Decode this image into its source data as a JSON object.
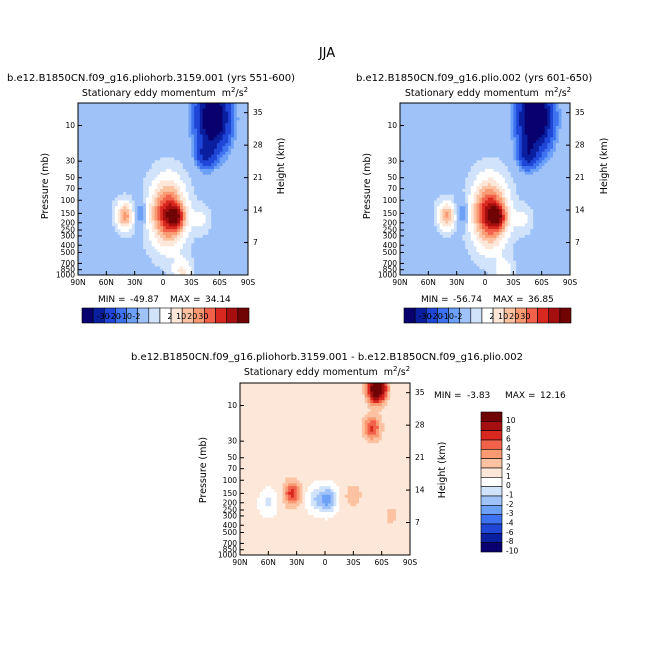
{
  "figure": {
    "season_title": "JJA"
  },
  "colors": {
    "palette_main": [
      "#08006e",
      "#0a1ea0",
      "#1f46d6",
      "#3f72f0",
      "#6da0f7",
      "#9fc2f9",
      "#d1e3fb",
      "#ffffff",
      "#fde7d8",
      "#fcc2a1",
      "#fa9a73",
      "#f2624a",
      "#d9281f",
      "#a60f0f",
      "#700404"
    ],
    "palette_diff": [
      "#08006e",
      "#0a1ea0",
      "#1f46d6",
      "#3f72f0",
      "#6da0f7",
      "#9fc2f9",
      "#d1e3fb",
      "#ffffff",
      "#fde7d8",
      "#fcc2a1",
      "#fa9a73",
      "#f2624a",
      "#d9281f",
      "#a60f0f",
      "#700404"
    ]
  },
  "chart_data": [
    {
      "id": "panel-a",
      "type": "heatmap",
      "case_title": "b.e12.B1850CN.f09_g16.pliohorb.3159.001 (yrs 551-600)",
      "variable_title": "Stationary eddy momentum",
      "units_base": "m",
      "units_sup1": "2",
      "units_sep": "/s",
      "units_sup2": "2",
      "xlabel": "",
      "ylabel": "Pressure  (mb)",
      "ylabel_right": "Height  (km)",
      "x_ticks": [
        "90N",
        "60N",
        "30N",
        "0",
        "30S",
        "60S",
        "90S"
      ],
      "x_tick_values": [
        90,
        60,
        30,
        0,
        -30,
        -60,
        -90
      ],
      "xlim": [
        90,
        -90
      ],
      "y_ticks": [
        "10",
        "30",
        "50",
        "70",
        "100",
        "150",
        "200",
        "250",
        "300",
        "400",
        "500",
        "700",
        "850",
        "1000"
      ],
      "y_tick_values": [
        10,
        30,
        50,
        70,
        100,
        150,
        200,
        250,
        300,
        400,
        500,
        700,
        850,
        1000
      ],
      "ylim": [
        1000,
        5
      ],
      "height_ticks": [
        "35",
        "28",
        "21",
        "14",
        "7"
      ],
      "height_tick_values": [
        35,
        28,
        21,
        14,
        7
      ],
      "min_label": "MIN =",
      "min_value": "-49.87",
      "max_label": "MAX =",
      "max_value": "34.14",
      "features": [
        {
          "lat": -53,
          "p": 8,
          "value": -49.87
        },
        {
          "lat": -45,
          "p": 25,
          "value": -20
        },
        {
          "lat": -5,
          "p": 150,
          "value": 34.14
        },
        {
          "lat": -15,
          "p": 170,
          "value": 20
        },
        {
          "lat": -40,
          "p": 180,
          "value": 5
        },
        {
          "lat": 40,
          "p": 160,
          "value": 22
        },
        {
          "lat": 25,
          "p": 150,
          "value": -8
        },
        {
          "lat": 10,
          "p": 150,
          "value": 3
        },
        {
          "lat": 62,
          "p": 220,
          "value": -2
        },
        {
          "lat": -20,
          "p": 900,
          "value": 10
        }
      ],
      "legend_ticks": [
        "-30",
        "-20",
        "-10",
        "-2",
        "2",
        "10",
        "20",
        "30"
      ]
    },
    {
      "id": "panel-b",
      "type": "heatmap",
      "case_title": "b.e12.B1850CN.f09_g16.plio.002 (yrs 601-650)",
      "variable_title": "Stationary eddy momentum",
      "units_base": "m",
      "units_sup1": "2",
      "units_sep": "/s",
      "units_sup2": "2",
      "ylabel": "Pressure  (mb)",
      "ylabel_right": "Height  (km)",
      "x_ticks": [
        "90N",
        "60N",
        "30N",
        "0",
        "30S",
        "60S",
        "90S"
      ],
      "x_tick_values": [
        90,
        60,
        30,
        0,
        -30,
        -60,
        -90
      ],
      "xlim": [
        90,
        -90
      ],
      "y_ticks": [
        "10",
        "30",
        "50",
        "70",
        "100",
        "150",
        "200",
        "250",
        "300",
        "400",
        "500",
        "700",
        "850",
        "1000"
      ],
      "y_tick_values": [
        10,
        30,
        50,
        70,
        100,
        150,
        200,
        250,
        300,
        400,
        500,
        700,
        850,
        1000
      ],
      "ylim": [
        1000,
        5
      ],
      "height_ticks": [
        "35",
        "28",
        "21",
        "14",
        "7"
      ],
      "height_tick_values": [
        35,
        28,
        21,
        14,
        7
      ],
      "min_label": "MIN =",
      "min_value": "-56.74",
      "max_label": "MAX =",
      "max_value": "36.85",
      "features": [
        {
          "lat": -53,
          "p": 8,
          "value": -56.74
        },
        {
          "lat": -45,
          "p": 25,
          "value": -22
        },
        {
          "lat": -5,
          "p": 150,
          "value": 36.85
        },
        {
          "lat": -15,
          "p": 170,
          "value": 18
        },
        {
          "lat": -40,
          "p": 180,
          "value": 5
        },
        {
          "lat": 40,
          "p": 160,
          "value": 20
        },
        {
          "lat": 25,
          "p": 150,
          "value": -8
        },
        {
          "lat": 10,
          "p": 150,
          "value": 3
        },
        {
          "lat": 62,
          "p": 220,
          "value": -2
        },
        {
          "lat": -20,
          "p": 900,
          "value": 8
        }
      ],
      "legend_ticks": [
        "-30",
        "-20",
        "-10",
        "-2",
        "2",
        "10",
        "20",
        "30"
      ]
    },
    {
      "id": "panel-diff",
      "type": "heatmap",
      "case_title": "b.e12.B1850CN.f09_g16.pliohorb.3159.001 - b.e12.B1850CN.f09_g16.plio.002",
      "variable_title": "Stationary eddy momentum",
      "units_base": "m",
      "units_sup1": "2",
      "units_sep": "/s",
      "units_sup2": "2",
      "ylabel": "Pressure  (mb)",
      "ylabel_right": "Height  (km)",
      "x_ticks": [
        "90N",
        "60N",
        "30N",
        "0",
        "30S",
        "60S",
        "90S"
      ],
      "x_tick_values": [
        90,
        60,
        30,
        0,
        -30,
        -60,
        -90
      ],
      "xlim": [
        90,
        -90
      ],
      "y_ticks": [
        "10",
        "30",
        "50",
        "70",
        "100",
        "150",
        "200",
        "250",
        "300",
        "400",
        "500",
        "700",
        "850",
        "1000"
      ],
      "y_tick_values": [
        10,
        30,
        50,
        70,
        100,
        150,
        200,
        250,
        300,
        400,
        500,
        700,
        850,
        1000
      ],
      "ylim": [
        1000,
        5
      ],
      "height_ticks": [
        "35",
        "28",
        "21",
        "14",
        "7"
      ],
      "height_tick_values": [
        35,
        28,
        21,
        14,
        7
      ],
      "min_label": "MIN =",
      "min_value": "-3.83",
      "max_label": "MAX =",
      "max_value": "12.16",
      "features": [
        {
          "lat": -55,
          "p": 6,
          "value": 12.16
        },
        {
          "lat": -50,
          "p": 20,
          "value": 4
        },
        {
          "lat": 35,
          "p": 150,
          "value": 4
        },
        {
          "lat": -3,
          "p": 180,
          "value": -3.83
        },
        {
          "lat": 10,
          "p": 180,
          "value": -2
        },
        {
          "lat": 60,
          "p": 200,
          "value": -1.5
        },
        {
          "lat": -30,
          "p": 160,
          "value": 1.5
        },
        {
          "lat": -70,
          "p": 300,
          "value": 1
        }
      ],
      "legend_ticks": [
        "10",
        "8",
        "6",
        "4",
        "3",
        "2",
        "1",
        "0",
        "-1",
        "-2",
        "-3",
        "-4",
        "-6",
        "-8",
        "-10"
      ]
    }
  ]
}
